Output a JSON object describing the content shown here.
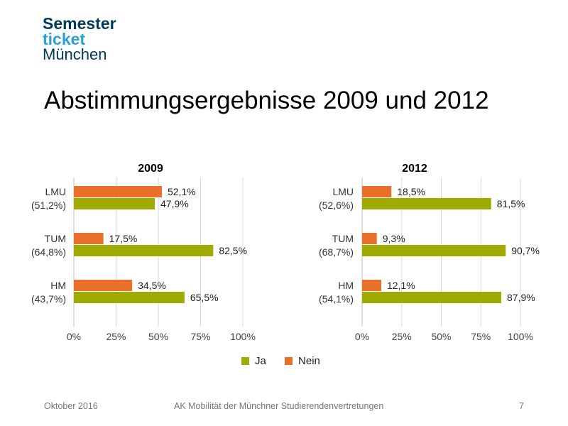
{
  "logo": {
    "line1": "Semester",
    "line2": "ticket",
    "line3": "München"
  },
  "title": "Abstimmungsergebnisse 2009 und 2012",
  "legend": {
    "ja": "Ja",
    "nein": "Nein"
  },
  "colors": {
    "ja": "#9fab00",
    "nein": "#e8702a",
    "grid": "#d9d9d9"
  },
  "footer": {
    "date": "Oktober 2016",
    "org": "AK Mobilität der Münchner  Studierendenvertretungen",
    "page": "7"
  },
  "chart_data": [
    {
      "type": "bar",
      "orientation": "horizontal",
      "title": "2009",
      "categories": [
        "LMU\n(51,2%)",
        "TUM\n(64,8%)",
        "HM\n(43,7%)"
      ],
      "series": [
        {
          "name": "Nein",
          "values": [
            52.1,
            17.5,
            34.5
          ],
          "labels": [
            "52,1%",
            "17,5%",
            "34,5%"
          ]
        },
        {
          "name": "Ja",
          "values": [
            47.9,
            82.5,
            65.5
          ],
          "labels": [
            "47,9%",
            "82,5%",
            "65,5%"
          ]
        }
      ],
      "xticks": [
        "0%",
        "25%",
        "50%",
        "75%",
        "100%"
      ],
      "xlim": [
        0,
        100
      ],
      "grid": true
    },
    {
      "type": "bar",
      "orientation": "horizontal",
      "title": "2012",
      "categories": [
        "LMU\n(52,6%)",
        "TUM\n(68,7%)",
        "HM\n(54,1%)"
      ],
      "series": [
        {
          "name": "Nein",
          "values": [
            18.5,
            9.3,
            12.1
          ],
          "labels": [
            "18,5%",
            "9,3%",
            "12,1%"
          ]
        },
        {
          "name": "Ja",
          "values": [
            81.5,
            90.7,
            87.9
          ],
          "labels": [
            "81,5%",
            "90,7%",
            "87,9%"
          ]
        }
      ],
      "xticks": [
        "0%",
        "25%",
        "50%",
        "75%",
        "100%"
      ],
      "xlim": [
        0,
        100
      ],
      "grid": true
    }
  ]
}
